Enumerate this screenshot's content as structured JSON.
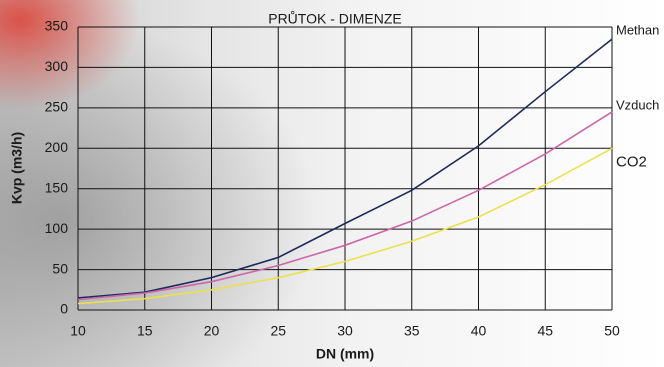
{
  "chart_data": {
    "type": "line",
    "title": "PRŮTOK  -  DIMENZE",
    "x_label": "DN (mm)",
    "y_label": "Kvp (m3/h)",
    "x": [
      10,
      15,
      20,
      25,
      30,
      35,
      40,
      45,
      50
    ],
    "series": [
      {
        "name": "Methan",
        "color": "#1f2a5c",
        "values": [
          15,
          22,
          40,
          65,
          107,
          148,
          203,
          270,
          335
        ]
      },
      {
        "name": "Vzduch",
        "color": "#cc66aa",
        "values": [
          13,
          21,
          35,
          55,
          80,
          110,
          148,
          193,
          245
        ]
      },
      {
        "name": "CO2",
        "color": "#ece04e",
        "values": [
          8,
          14,
          25,
          40,
          60,
          85,
          115,
          155,
          200
        ]
      }
    ],
    "xlim": [
      10,
      50
    ],
    "xticks": [
      10,
      15,
      20,
      25,
      30,
      35,
      40,
      45,
      50
    ],
    "ylim": [
      0,
      350
    ],
    "yticks": [
      0,
      50,
      100,
      150,
      200,
      250,
      300,
      350
    ],
    "grid": true
  }
}
